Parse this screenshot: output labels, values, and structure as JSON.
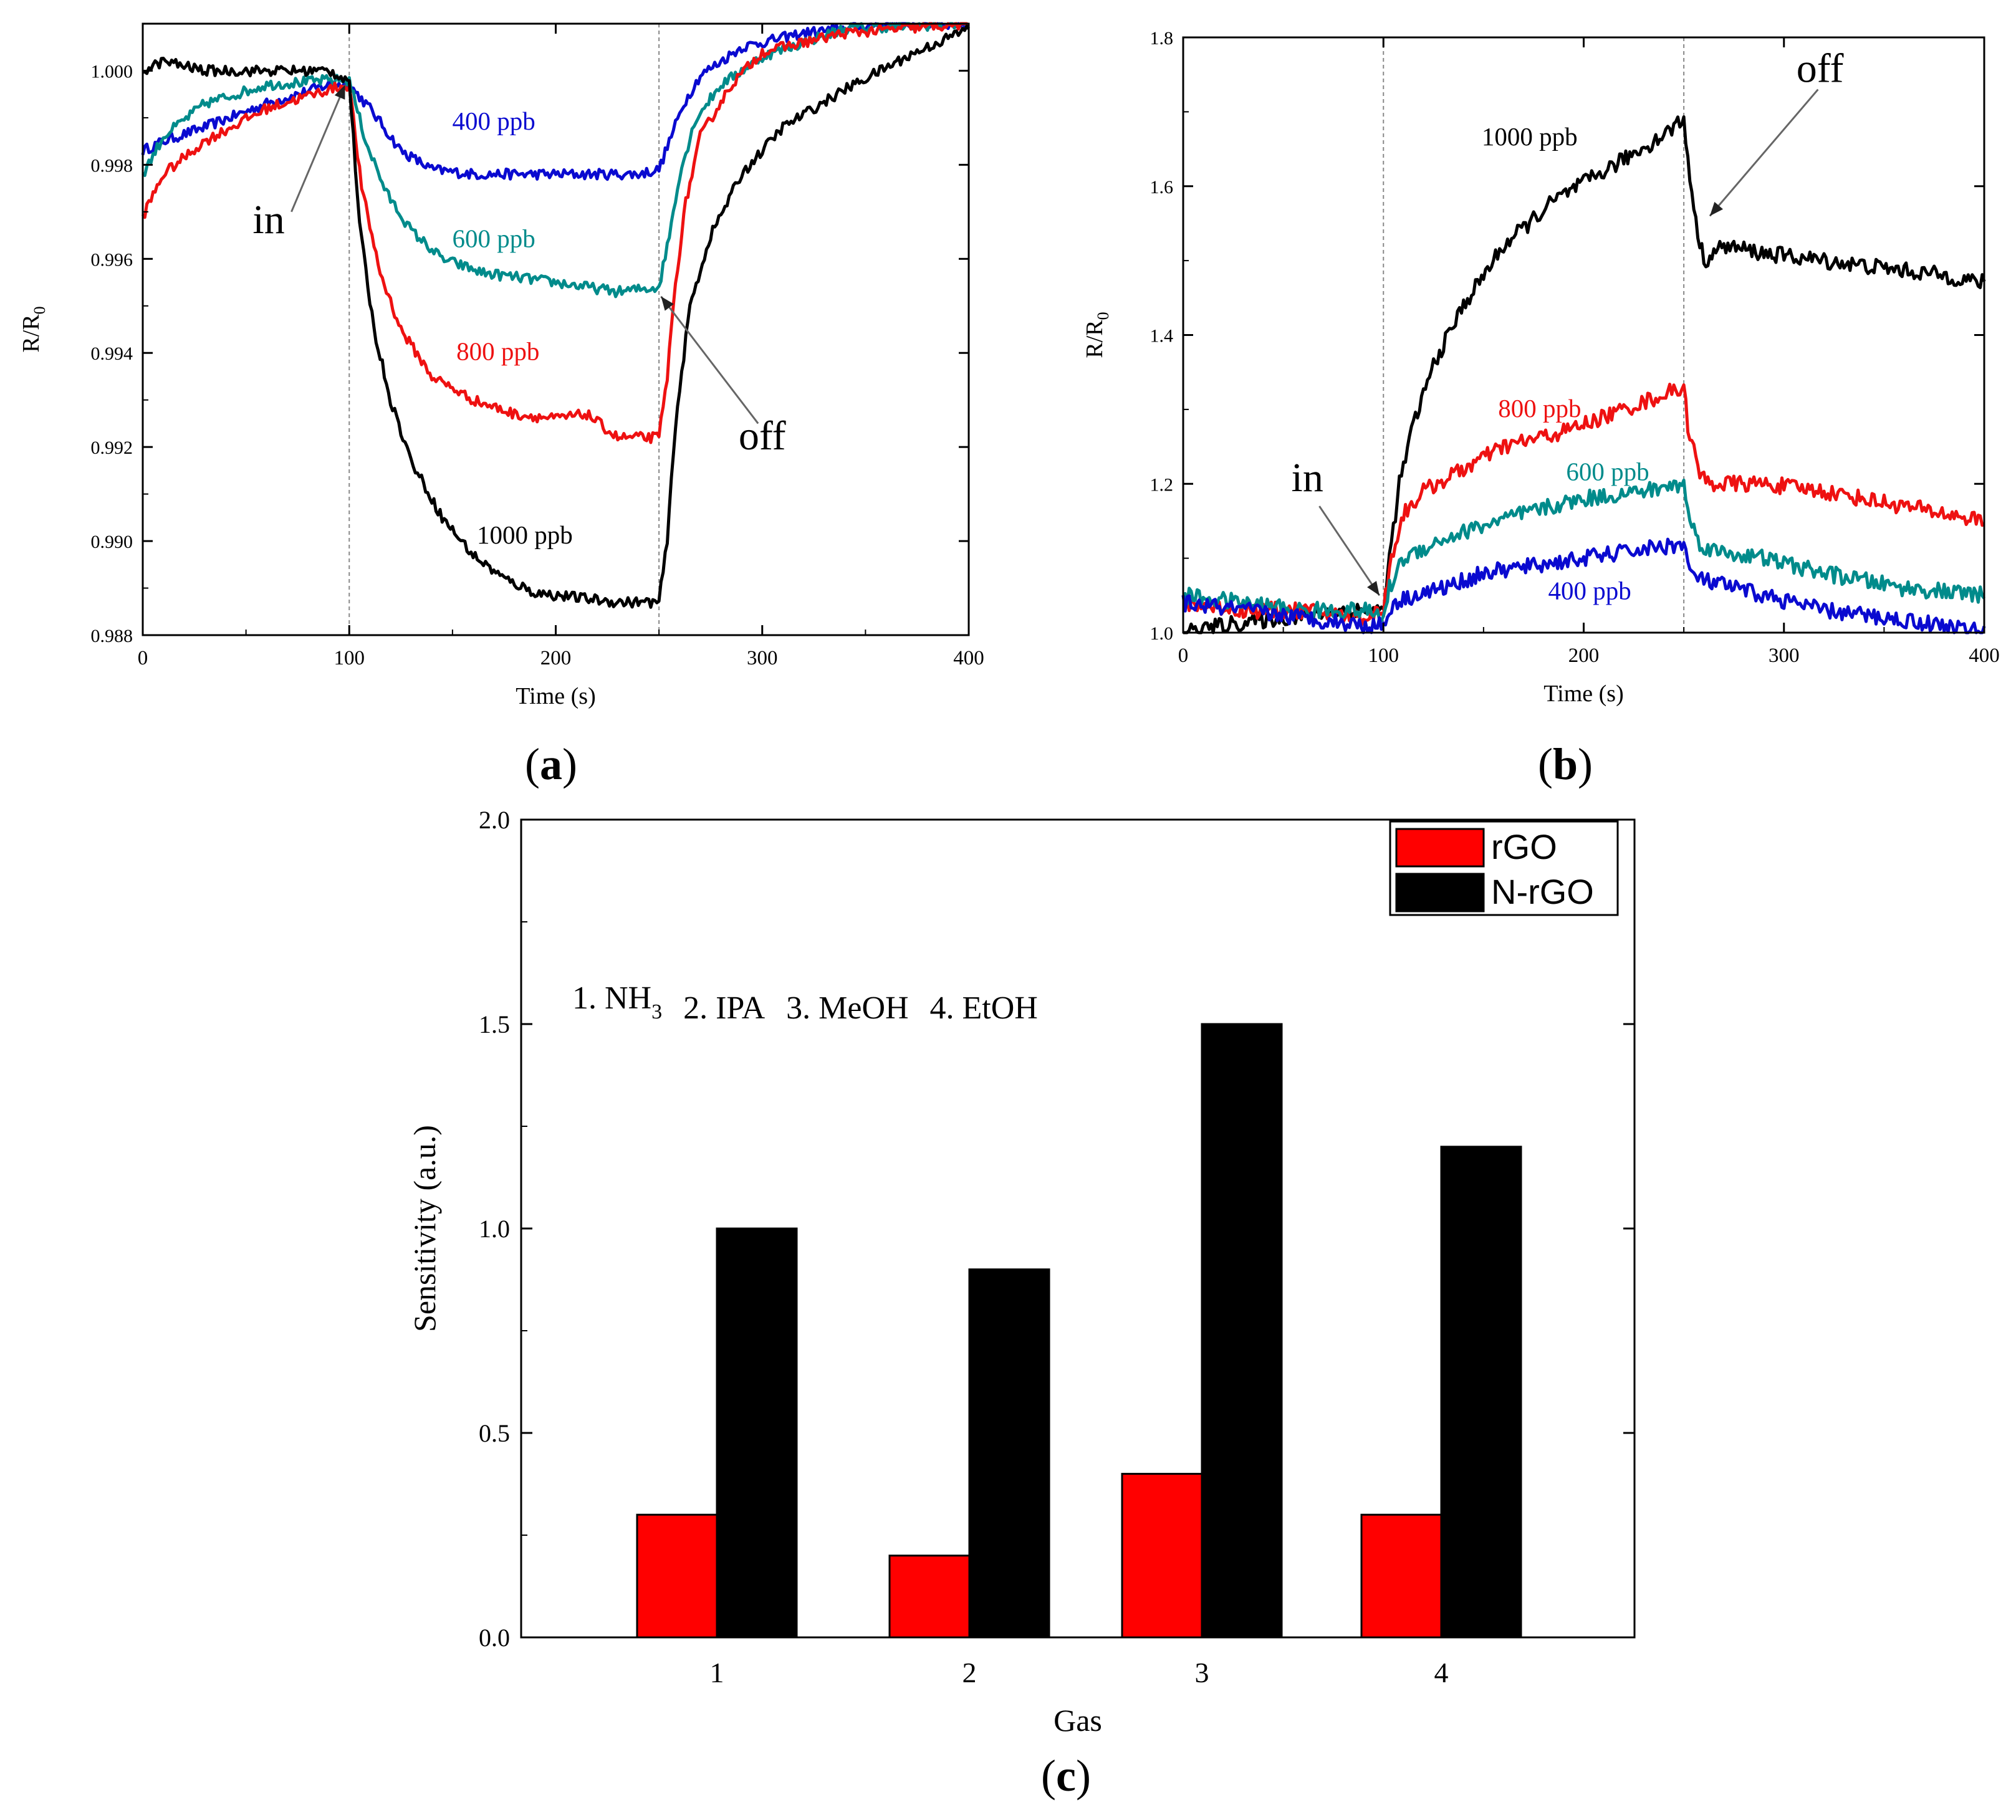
{
  "chart_data": [
    {
      "id": "a",
      "panel_label": "a",
      "type": "line",
      "xlabel": "Time (s)",
      "ylabel": "R/R",
      "ylabel_sub": "0",
      "xlim": [
        0,
        400
      ],
      "ylim": [
        0.988,
        1.001
      ],
      "xticks": [
        0,
        100,
        200,
        300,
        400
      ],
      "xtick_labels": [
        "0",
        "100",
        "200",
        "300",
        "400"
      ],
      "yticks": [
        0.988,
        0.99,
        0.992,
        0.994,
        0.996,
        0.998,
        1.0
      ],
      "ytick_labels": [
        "0.988",
        "0.990",
        "0.992",
        "0.994",
        "0.996",
        "0.998",
        "1.000"
      ],
      "vlines": [
        100,
        250
      ],
      "series": [
        {
          "name": "400 ppb",
          "color": "#0a0ad0",
          "x": [
            0,
            10,
            30,
            60,
            90,
            100,
            110,
            125,
            140,
            160,
            200,
            240,
            250,
            255,
            262,
            270,
            290,
            320,
            360,
            400
          ],
          "y": [
            0.9983,
            0.9985,
            0.9988,
            0.9993,
            0.9997,
            0.9997,
            0.9992,
            0.9983,
            0.9979,
            0.9978,
            0.9978,
            0.9978,
            0.9979,
            0.9985,
            0.9993,
            0.9999,
            1.0005,
            1.0008,
            1.001,
            1.001
          ]
        },
        {
          "name": "600 ppb",
          "color": "#008b8b",
          "x": [
            0,
            10,
            30,
            60,
            90,
            100,
            108,
            118,
            130,
            145,
            165,
            200,
            230,
            250,
            255,
            260,
            268,
            280,
            300,
            340,
            400
          ],
          "y": [
            0.9978,
            0.9986,
            0.9993,
            0.9997,
            0.9998,
            0.9998,
            0.9985,
            0.9974,
            0.9966,
            0.996,
            0.9957,
            0.9955,
            0.9953,
            0.9954,
            0.9965,
            0.9978,
            0.999,
            0.9997,
            1.0003,
            1.0009,
            1.001
          ]
        },
        {
          "name": "800 ppb",
          "color": "#ee1111",
          "x": [
            0,
            10,
            30,
            60,
            90,
            100,
            106,
            115,
            125,
            140,
            160,
            180,
            200,
            215,
            230,
            250,
            254,
            258,
            263,
            270,
            285,
            300,
            340,
            400
          ],
          "y": [
            0.9969,
            0.9978,
            0.9985,
            0.9992,
            0.9996,
            0.9997,
            0.9975,
            0.9957,
            0.9945,
            0.9935,
            0.993,
            0.9927,
            0.9926,
            0.9927,
            0.9922,
            0.9922,
            0.9935,
            0.9955,
            0.9972,
            0.9986,
            0.9997,
            1.0004,
            1.0008,
            1.001
          ]
        },
        {
          "name": "1000 ppb",
          "color": "#000000",
          "x": [
            0,
            10,
            30,
            60,
            90,
            100,
            105,
            112,
            120,
            130,
            145,
            160,
            175,
            190,
            210,
            230,
            250,
            254,
            258,
            265,
            275,
            290,
            310,
            340,
            370,
            400
          ],
          "y": [
            1.0,
            1.0002,
            1.0,
            1.0,
            1.0,
            0.9998,
            0.9967,
            0.9945,
            0.993,
            0.9917,
            0.9905,
            0.9897,
            0.9892,
            0.9889,
            0.9888,
            0.9887,
            0.9887,
            0.99,
            0.9925,
            0.995,
            0.9965,
            0.9978,
            0.9988,
            0.9996,
            1.0003,
            1.0009
          ]
        }
      ],
      "annotations": [
        {
          "text": "400 ppb",
          "x": 170,
          "y": 0.99875,
          "color": "#0a0ad0",
          "size": "small"
        },
        {
          "text": "600 ppb",
          "x": 170,
          "y": 0.99625,
          "color": "#008b8b",
          "size": "small"
        },
        {
          "text": "800 ppb",
          "x": 172,
          "y": 0.99385,
          "color": "#ee1111",
          "size": "small"
        },
        {
          "text": "1000 ppb",
          "x": 185,
          "y": 0.98995,
          "color": "#000000",
          "size": "small"
        },
        {
          "text": "in",
          "x": 61,
          "y": 0.99655,
          "color": "#000000",
          "size": "large"
        },
        {
          "text": "off",
          "x": 300,
          "y": 0.99195,
          "color": "#000000",
          "size": "large"
        }
      ],
      "arrows": [
        {
          "from": [
            72,
            0.997
          ],
          "to": [
            98,
            0.9997
          ]
        },
        {
          "from": [
            298,
            0.9925
          ],
          "to": [
            251,
            0.9952
          ]
        }
      ]
    },
    {
      "id": "b",
      "panel_label": "b",
      "type": "line",
      "xlabel": "Time (s)",
      "ylabel": "R/R",
      "ylabel_sub": "0",
      "xlim": [
        0,
        400
      ],
      "ylim": [
        1.0,
        1.8
      ],
      "xticks": [
        0,
        100,
        200,
        300,
        400
      ],
      "xtick_labels": [
        "0",
        "100",
        "200",
        "300",
        "400"
      ],
      "yticks": [
        1.0,
        1.2,
        1.4,
        1.6,
        1.8
      ],
      "ytick_labels": [
        "1.0",
        "1.2",
        "1.4",
        "1.6",
        "1.8"
      ],
      "vlines": [
        100,
        250
      ],
      "series": [
        {
          "name": "1000 ppb",
          "color": "#000000",
          "x": [
            0,
            20,
            50,
            80,
            100,
            103,
            108,
            115,
            125,
            140,
            160,
            185,
            210,
            235,
            250,
            251,
            256,
            260,
            270,
            290,
            320,
            350,
            380,
            400
          ],
          "y": [
            1.0,
            1.01,
            1.02,
            1.03,
            1.03,
            1.1,
            1.2,
            1.28,
            1.36,
            1.44,
            1.52,
            1.58,
            1.62,
            1.66,
            1.69,
            1.66,
            1.55,
            1.5,
            1.52,
            1.51,
            1.5,
            1.49,
            1.48,
            1.47
          ]
        },
        {
          "name": "800 ppb",
          "color": "#ee1111",
          "x": [
            0,
            30,
            60,
            90,
            100,
            103,
            110,
            120,
            140,
            160,
            190,
            220,
            250,
            252,
            258,
            265,
            290,
            320,
            360,
            400
          ],
          "y": [
            1.04,
            1.03,
            1.03,
            1.02,
            1.03,
            1.09,
            1.16,
            1.19,
            1.22,
            1.25,
            1.27,
            1.3,
            1.33,
            1.28,
            1.21,
            1.2,
            1.2,
            1.19,
            1.17,
            1.15
          ]
        },
        {
          "name": "600 ppb",
          "color": "#008b8b",
          "x": [
            0,
            30,
            60,
            90,
            100,
            103,
            110,
            125,
            145,
            170,
            200,
            230,
            250,
            253,
            258,
            265,
            290,
            320,
            360,
            400
          ],
          "y": [
            1.05,
            1.04,
            1.03,
            1.03,
            1.02,
            1.06,
            1.1,
            1.12,
            1.14,
            1.16,
            1.18,
            1.19,
            1.2,
            1.15,
            1.12,
            1.11,
            1.1,
            1.08,
            1.06,
            1.05
          ]
        },
        {
          "name": "400 ppb",
          "color": "#0a0ad0",
          "x": [
            0,
            30,
            60,
            90,
            100,
            105,
            115,
            130,
            150,
            175,
            200,
            225,
            250,
            253,
            260,
            290,
            320,
            350,
            380,
            400
          ],
          "y": [
            1.04,
            1.03,
            1.02,
            1.01,
            1.01,
            1.04,
            1.05,
            1.06,
            1.08,
            1.09,
            1.1,
            1.11,
            1.12,
            1.08,
            1.07,
            1.05,
            1.03,
            1.02,
            1.01,
            1.0
          ]
        }
      ],
      "annotations": [
        {
          "text": "1000 ppb",
          "x": 173,
          "y": 1.655,
          "color": "#000000",
          "size": "small"
        },
        {
          "text": "800 ppb",
          "x": 178,
          "y": 1.29,
          "color": "#ee1111",
          "size": "small"
        },
        {
          "text": "600 ppb",
          "x": 212,
          "y": 1.205,
          "color": "#008b8b",
          "size": "small"
        },
        {
          "text": "400 ppb",
          "x": 203,
          "y": 1.045,
          "color": "#0a0ad0",
          "size": "small"
        },
        {
          "text": "off",
          "x": 318,
          "y": 1.74,
          "color": "#000000",
          "size": "large"
        },
        {
          "text": "in",
          "x": 62,
          "y": 1.19,
          "color": "#000000",
          "size": "large"
        }
      ],
      "arrows": [
        {
          "from": [
            68,
            1.17
          ],
          "to": [
            98,
            1.05
          ]
        },
        {
          "from": [
            317,
            1.73
          ],
          "to": [
            263,
            1.56
          ]
        }
      ]
    },
    {
      "id": "c",
      "panel_label": "c",
      "type": "bar",
      "xlabel": "Gas",
      "ylabel": "Sensitivity (a.u.)",
      "categories": [
        "1",
        "2",
        "3",
        "4"
      ],
      "ylim": [
        0.0,
        2.0
      ],
      "yticks": [
        0.0,
        0.5,
        1.0,
        1.5,
        2.0
      ],
      "ytick_labels": [
        "0.0",
        "0.5",
        "1.0",
        "1.5",
        "2.0"
      ],
      "legend_position": "top-right",
      "series": [
        {
          "name": "rGO",
          "color": "#ff0000",
          "values": [
            0.3,
            0.2,
            0.4,
            0.3
          ]
        },
        {
          "name": "N-rGO",
          "color": "#000000",
          "values": [
            1.0,
            0.9,
            1.5,
            1.2
          ]
        }
      ],
      "gas_note": {
        "items": [
          {
            "num": "1. ",
            "name": "NH",
            "sub": "3"
          },
          {
            "num": "2. ",
            "name": "IPA",
            "sub": ""
          },
          {
            "num": "3. ",
            "name": "MeOH",
            "sub": ""
          },
          {
            "num": "4. ",
            "name": "EtOH",
            "sub": ""
          }
        ]
      }
    }
  ]
}
